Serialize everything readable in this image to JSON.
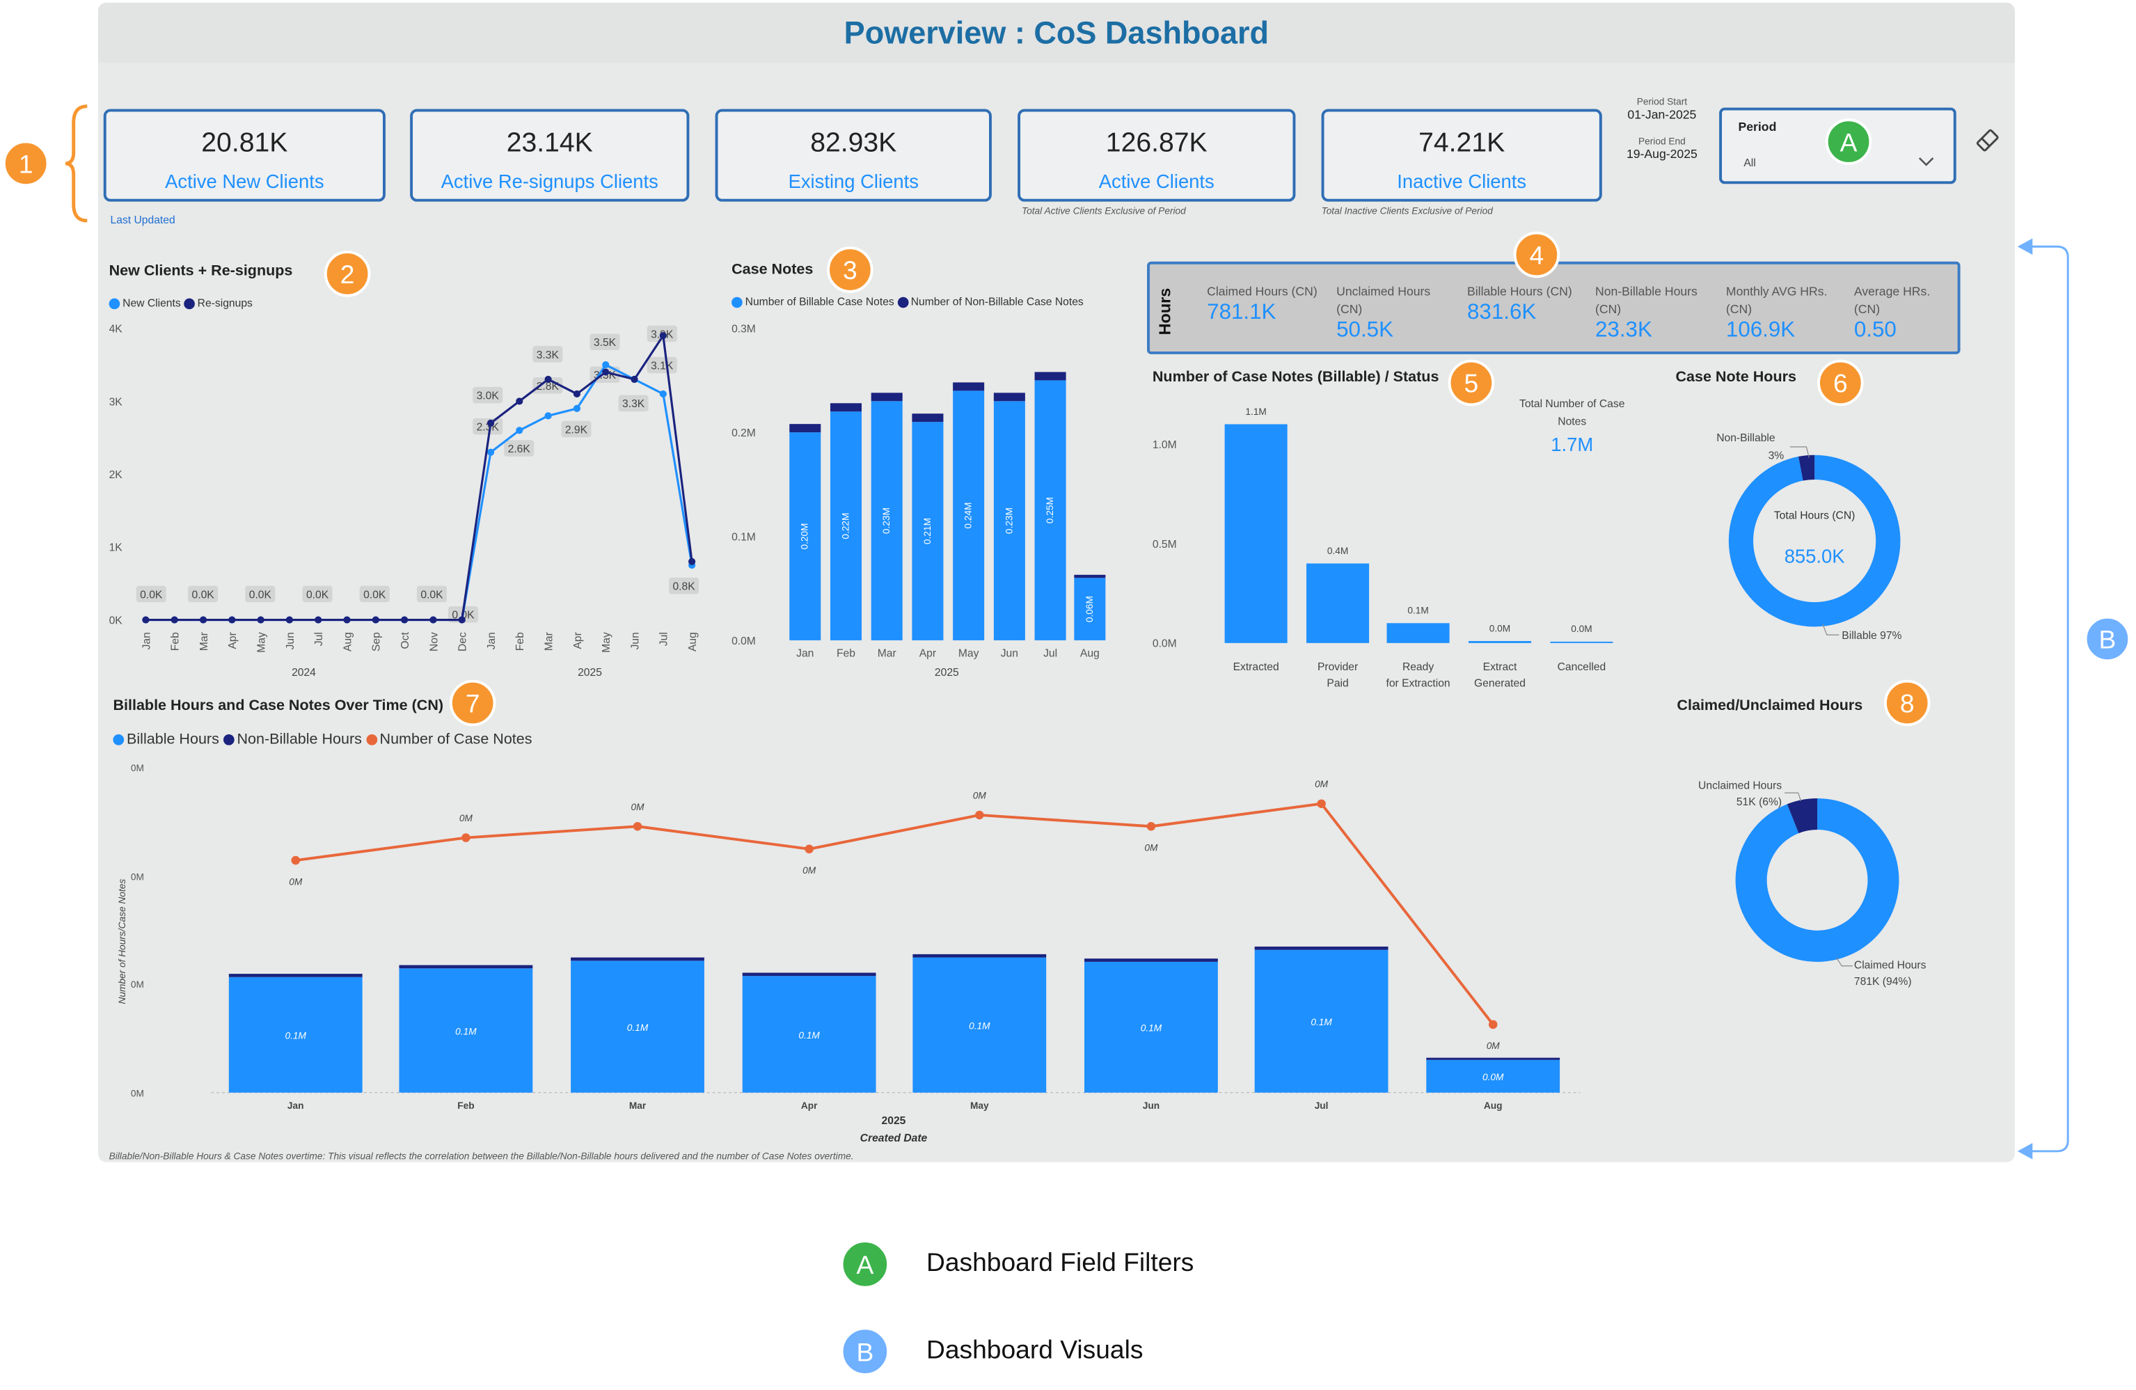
{
  "title": "Powerview : CoS Dashboard",
  "kpis": [
    {
      "value": "20.81K",
      "label": "Active New Clients"
    },
    {
      "value": "23.14K",
      "label": "Active Re-signups Clients"
    },
    {
      "value": "82.93K",
      "label": "Existing Clients"
    },
    {
      "value": "126.87K",
      "label": "Active Clients"
    },
    {
      "value": "74.21K",
      "label": "Inactive Clients"
    }
  ],
  "last_updated": "Last Updated",
  "notes": {
    "active": "Total Active Clients Exclusive of Period",
    "inactive": "Total Inactive Clients Exclusive of Period"
  },
  "period": {
    "start_label": "Period Start",
    "start": "01-Jan-2025",
    "end_label": "Period End",
    "end": "19-Aug-2025",
    "slicer_label": "Period",
    "slicer_value": "All"
  },
  "markers": {
    "m1": "1",
    "m2": "2",
    "m3": "3",
    "m4": "4",
    "m5": "5",
    "m6": "6",
    "m7": "7",
    "m8": "8",
    "A": "A",
    "B": "B"
  },
  "legend_bottom": [
    {
      "key": "A",
      "text": "Dashboard Field Filters",
      "color": "#3cb44b"
    },
    {
      "key": "B",
      "text": "Dashboard Visuals",
      "color": "#6fb0ff"
    }
  ],
  "colors": {
    "light": "#1e90ff",
    "dark": "#1a237e",
    "orange": "#e8673a",
    "accent": "#1c6ea4"
  },
  "hours": {
    "side_label": "Hours",
    "items": [
      {
        "label": "Claimed Hours (CN)",
        "value": "781.1K"
      },
      {
        "label": "Unclaimed Hours (CN)",
        "value": "50.5K"
      },
      {
        "label": "Billable Hours (CN)",
        "value": "831.6K"
      },
      {
        "label": "Non-Billable Hours (CN)",
        "value": "23.3K"
      },
      {
        "label": "Monthly AVG HRs. (CN)",
        "value": "106.9K"
      },
      {
        "label": "Average HRs. (CN)",
        "value": "0.50"
      }
    ]
  },
  "chart_data": [
    {
      "id": "new-clients",
      "type": "line",
      "title": "New Clients + Re-signups",
      "x": [
        "Jan",
        "Feb",
        "Mar",
        "Apr",
        "May",
        "Jun",
        "Jul",
        "Aug",
        "Sep",
        "Oct",
        "Nov",
        "Dec",
        "Jan",
        "Feb",
        "Mar",
        "Apr",
        "May",
        "Jun",
        "Jul",
        "Aug"
      ],
      "x_years": [
        "2024",
        "2025"
      ],
      "yticks": [
        "0K",
        "1K",
        "2K",
        "3K",
        "4K"
      ],
      "ylim": [
        0,
        4000
      ],
      "series": [
        {
          "name": "New Clients",
          "values": [
            0,
            0,
            0,
            0,
            0,
            0,
            0,
            0,
            0,
            0,
            0,
            0,
            2300,
            2600,
            2800,
            2900,
            3500,
            3300,
            3100,
            750
          ]
        },
        {
          "name": "Re-signups",
          "values": [
            0,
            0,
            0,
            0,
            0,
            0,
            0,
            0,
            0,
            0,
            0,
            0,
            2700,
            3000,
            3300,
            3100,
            3400,
            3300,
            3900,
            800
          ]
        }
      ],
      "labels": [
        {
          "text": "0.0K"
        },
        {
          "text": "0.0K"
        },
        {
          "text": "0.0K"
        },
        {
          "text": "0.0K"
        },
        {
          "text": "0.0K"
        },
        {
          "text": "0.0K"
        },
        {
          "text": "0.0K"
        },
        {
          "text": "2.3K"
        },
        {
          "text": "3.0K"
        },
        {
          "text": "2.6K"
        },
        {
          "text": "3.3K"
        },
        {
          "text": "2.8K"
        },
        {
          "text": "2.9K"
        },
        {
          "text": "3.5K"
        },
        {
          "text": "3.3K"
        },
        {
          "text": "3.3K"
        },
        {
          "text": "3.9K"
        },
        {
          "text": "3.1K"
        },
        {
          "text": "0.8K"
        }
      ]
    },
    {
      "id": "case-notes",
      "type": "bar",
      "title": "Case Notes",
      "categories": [
        "Jan",
        "Feb",
        "Mar",
        "Apr",
        "May",
        "Jun",
        "Jul",
        "Aug"
      ],
      "x_year": "2025",
      "yticks": [
        "0.0M",
        "0.1M",
        "0.2M",
        "0.3M"
      ],
      "ylim": [
        0,
        0.3
      ],
      "series": [
        {
          "name": "Number of Billable Case Notes",
          "values": [
            0.2,
            0.22,
            0.23,
            0.21,
            0.24,
            0.23,
            0.25,
            0.06
          ],
          "labels": [
            "0.20M",
            "0.22M",
            "0.23M",
            "0.21M",
            "0.24M",
            "0.23M",
            "0.25M",
            "0.06M"
          ]
        },
        {
          "name": "Number of Non-Billable Case Notes",
          "values": [
            0.008,
            0.008,
            0.008,
            0.008,
            0.008,
            0.008,
            0.008,
            0.003
          ]
        }
      ]
    },
    {
      "id": "status",
      "type": "bar",
      "title": "Number of Case Notes (Billable) / Status",
      "categories": [
        "Extracted",
        "Provider Paid",
        "Ready for Extraction",
        "Extract Generated",
        "Cancelled"
      ],
      "values": [
        1.1,
        0.4,
        0.1,
        0.01,
        0.002
      ],
      "labels": [
        "1.1M",
        "0.4M",
        "0.1M",
        "0.0M",
        "0.0M"
      ],
      "yticks": [
        "0.0M",
        "0.5M",
        "1.0M"
      ],
      "ylim": [
        0,
        1.25
      ],
      "total_label": "Total Number of Case Notes",
      "total": "1.7M"
    },
    {
      "id": "case-note-hours",
      "type": "pie",
      "title": "Case Note Hours",
      "center_label": "Total Hours (CN)",
      "center_value": "855.0K",
      "slices": [
        {
          "name": "Billable",
          "value": 97,
          "label": "Billable 97%"
        },
        {
          "name": "Non-Billable",
          "value": 3,
          "label": "Non-Billable",
          "pct": "3%"
        }
      ]
    },
    {
      "id": "claimed",
      "type": "pie",
      "title": "Claimed/Unclaimed Hours",
      "slices": [
        {
          "name": "Claimed Hours",
          "value": 94,
          "label": "Claimed Hours",
          "detail": "781K (94%)"
        },
        {
          "name": "Unclaimed Hours",
          "value": 6,
          "label": "Unclaimed Hours",
          "detail": "51K (6%)"
        }
      ]
    },
    {
      "id": "over-time",
      "type": "bar",
      "title": "Billable Hours and Case Notes Over Time (CN)",
      "categories": [
        "Jan",
        "Feb",
        "Mar",
        "Apr",
        "May",
        "Jun",
        "Jul",
        "Aug"
      ],
      "x_year": "2025",
      "xlabel": "Created Date",
      "ylabel": "Number of Hours/Case Notes",
      "yticks": [
        "0M",
        "0M",
        "0M",
        "0M"
      ],
      "series": [
        {
          "name": "Billable Hours",
          "values": [
            0.106,
            0.114,
            0.121,
            0.107,
            0.124,
            0.12,
            0.131,
            0.03
          ],
          "labels": [
            "0.1M",
            "0.1M",
            "0.1M",
            "0.1M",
            "0.1M",
            "0.1M",
            "0.1M",
            "0.0M"
          ]
        },
        {
          "name": "Non-Billable Hours",
          "values": [
            0.003,
            0.003,
            0.003,
            0.003,
            0.003,
            0.003,
            0.003,
            0.002
          ]
        },
        {
          "name": "Number of Case Notes",
          "values": [
            0.208,
            0.228,
            0.238,
            0.218,
            0.248,
            0.238,
            0.258,
            0.063
          ],
          "labels": [
            "0M",
            "0M",
            "0M",
            "0M",
            "0M",
            "0M",
            "0M",
            "0M"
          ]
        }
      ],
      "footnote": "Billable/Non-Billable Hours & Case Notes overtime: This visual reflects the correlation between the Billable/Non-Billable hours delivered and the number of Case Notes overtime."
    }
  ]
}
